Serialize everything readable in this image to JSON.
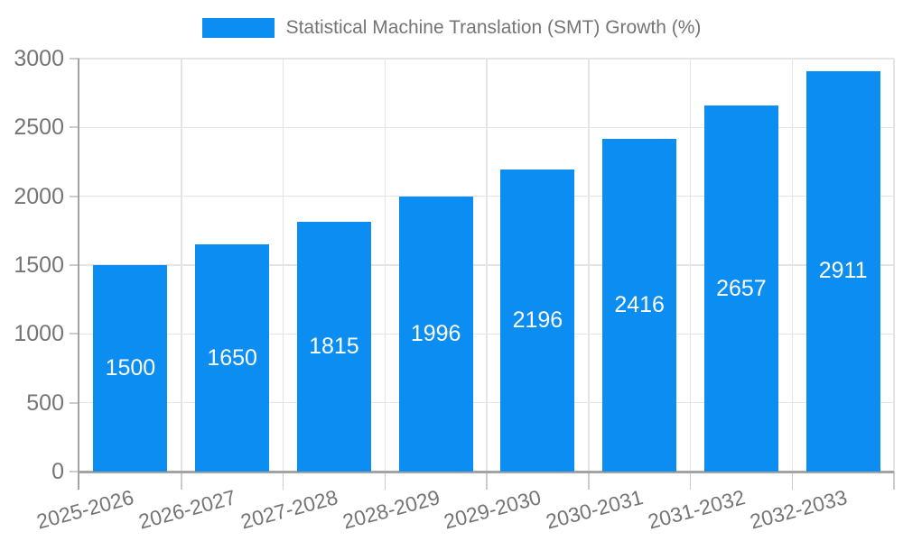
{
  "chart_data": {
    "type": "bar",
    "title": "Statistical Machine Translation (SMT) Growth (%)",
    "categories": [
      "2025-2026",
      "2026-2027",
      "2027-2028",
      "2028-2029",
      "2029-2030",
      "2030-2031",
      "2031-2032",
      "2032-2033"
    ],
    "values": [
      1500,
      1650,
      1815,
      1996,
      2196,
      2416,
      2657,
      2911
    ],
    "value_labels": [
      "1500",
      "1650",
      "1815",
      "1996",
      "2196",
      "2416",
      "2657",
      "2911"
    ],
    "xlabel": "",
    "ylabel": "",
    "ylim": [
      0,
      3000
    ],
    "yticks": [
      0,
      500,
      1000,
      1500,
      2000,
      2500,
      3000
    ],
    "grid": true,
    "legend_position": "top-center",
    "x_tick_rotation_deg": -15,
    "colors": {
      "bar": "#0b8df2",
      "value_label": "#ffffff",
      "tick_text": "#757575",
      "legend_text": "#757575",
      "gridline": "#e4e4e4",
      "axis": "#a3a3a3",
      "tick_mark": "#cccccc",
      "background": "#ffffff"
    }
  }
}
